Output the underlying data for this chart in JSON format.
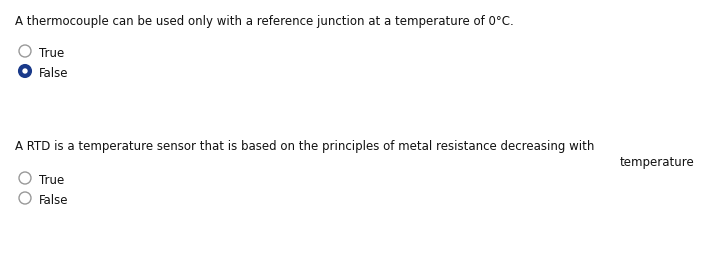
{
  "bg_color": "#ffffff",
  "q1_text": "A thermocouple can be used only with a reference junction at a temperature of 0°C.",
  "q1_true_label": "True",
  "q1_false_label": "False",
  "q1_true_selected": false,
  "q1_false_selected": true,
  "q2_text_line1": "A RTD is a temperature sensor that is based on the principles of metal resistance decreasing with",
  "q2_text_line2": "temperature",
  "q2_true_label": "True",
  "q2_false_label": "False",
  "q2_true_selected": false,
  "q2_false_selected": false,
  "radio_filled_color": "#1a3a8a",
  "radio_empty_color": "#ffffff",
  "radio_edge_color": "#999999",
  "text_color": "#111111",
  "q1_fontsize": 8.5,
  "q2_fontsize": 8.5,
  "option_fontsize": 8.5
}
